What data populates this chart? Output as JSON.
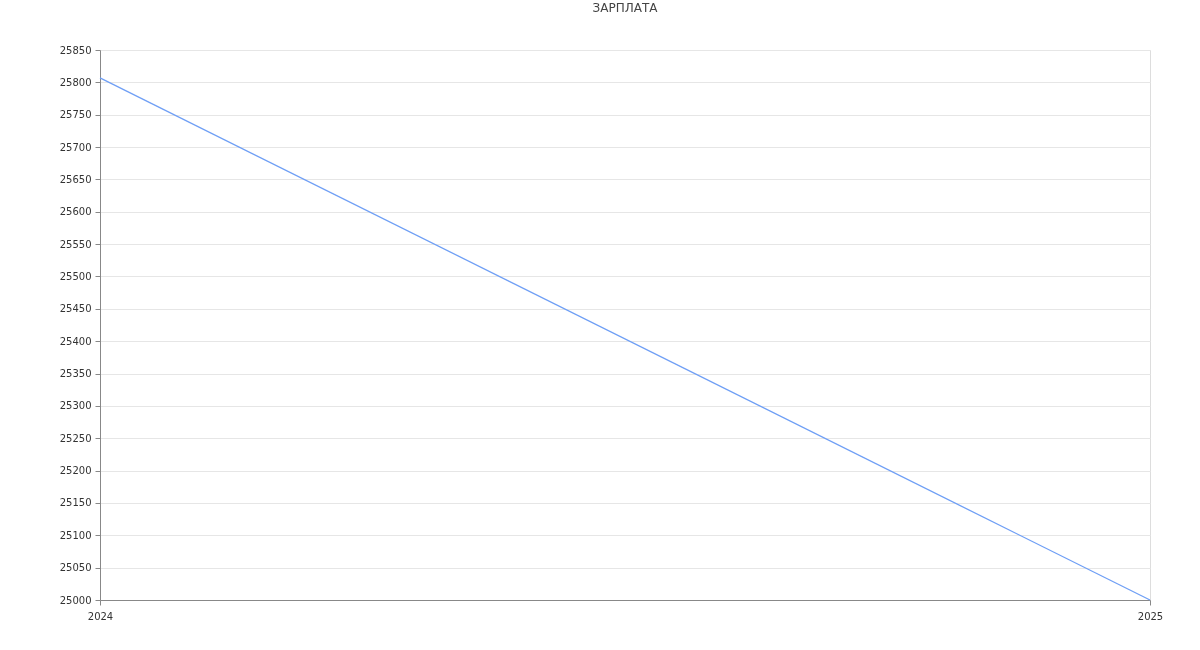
{
  "chart_data": {
    "type": "line",
    "title": "ЗАРПЛАТА",
    "x": [
      "2024",
      "2025"
    ],
    "series": [
      {
        "color": "#6f9ff5",
        "values": [
          25807,
          25000
        ]
      }
    ],
    "xlim": [
      "2024",
      "2025"
    ],
    "xticks": [
      "2024",
      "2025"
    ],
    "ylim": [
      25000,
      25850
    ],
    "yticks": [
      25000,
      25050,
      25100,
      25150,
      25200,
      25250,
      25300,
      25350,
      25400,
      25450,
      25500,
      25550,
      25600,
      25650,
      25700,
      25750,
      25800,
      25850
    ],
    "grid": "y"
  }
}
